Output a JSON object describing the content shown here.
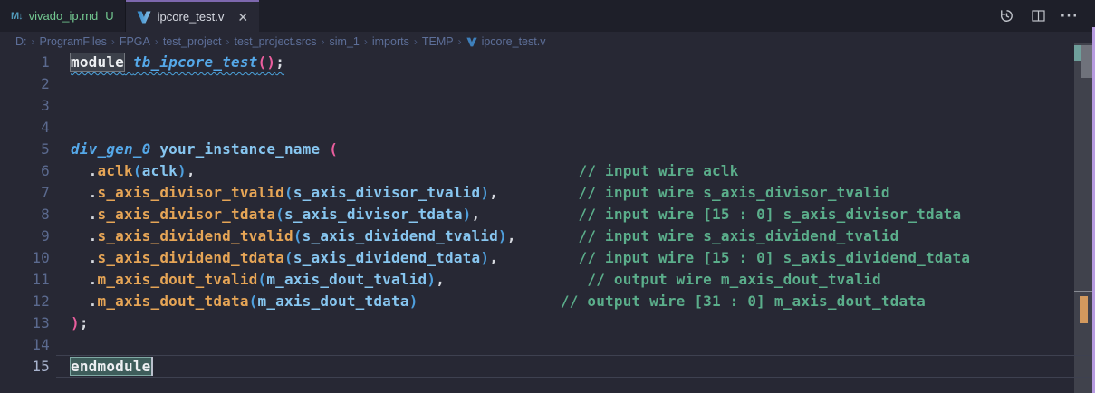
{
  "tab_bar": {
    "tabs": [
      {
        "label": "vivado_ip.md",
        "badge": "U",
        "icon": "markdown-icon",
        "state": "inactive"
      },
      {
        "label": "ipcore_test.v",
        "icon": "vivado-verilog-icon",
        "state": "active",
        "close_glyph": "✕"
      }
    ],
    "actions": [
      "history-icon",
      "split-editor-icon",
      "more-actions-icon"
    ],
    "more_glyph": "···"
  },
  "breadcrumb": {
    "separator": "›",
    "items": [
      "D:",
      "ProgramFiles",
      "FPGA",
      "test_project",
      "test_project.srcs",
      "sim_1",
      "imports",
      "TEMP",
      "ipcore_test.v"
    ],
    "file_icon": "vivado-verilog-icon"
  },
  "editor": {
    "lines": [
      {
        "num": "1",
        "squiggle": true,
        "segments": [
          {
            "t": "module",
            "c": "kw",
            "box": "word"
          },
          {
            "t": " ",
            "c": "pu"
          },
          {
            "t": "tb_ipcore_test",
            "c": "ent"
          },
          {
            "t": "()",
            "c": "pp"
          },
          {
            "t": ";",
            "c": "pu"
          }
        ]
      },
      {
        "num": "2",
        "segments": []
      },
      {
        "num": "3",
        "segments": []
      },
      {
        "num": "4",
        "segments": []
      },
      {
        "num": "5",
        "segments": [
          {
            "t": "div_gen_0",
            "c": "ent"
          },
          {
            "t": " ",
            "c": "pu"
          },
          {
            "t": "your_instance_name",
            "c": "var"
          },
          {
            "t": " ",
            "c": "pu"
          },
          {
            "t": "(",
            "c": "pp"
          }
        ]
      },
      {
        "num": "6",
        "segments": [
          {
            "t": "  .",
            "c": "pu"
          },
          {
            "t": "aclk",
            "c": "port"
          },
          {
            "t": "(",
            "c": "bp"
          },
          {
            "t": "aclk",
            "c": "var"
          },
          {
            "t": ")",
            "c": "bp"
          },
          {
            "t": ",",
            "c": "pu"
          },
          {
            "pad": 43
          },
          {
            "t": "// input wire aclk",
            "c": "cm"
          }
        ]
      },
      {
        "num": "7",
        "segments": [
          {
            "t": "  .",
            "c": "pu"
          },
          {
            "t": "s_axis_divisor_tvalid",
            "c": "port"
          },
          {
            "t": "(",
            "c": "bp"
          },
          {
            "t": "s_axis_divisor_tvalid",
            "c": "var"
          },
          {
            "t": ")",
            "c": "bp"
          },
          {
            "t": ",",
            "c": "pu"
          },
          {
            "pad": 9
          },
          {
            "t": "// input wire s_axis_divisor_tvalid",
            "c": "cm"
          }
        ]
      },
      {
        "num": "8",
        "segments": [
          {
            "t": "  .",
            "c": "pu"
          },
          {
            "t": "s_axis_divisor_tdata",
            "c": "port"
          },
          {
            "t": "(",
            "c": "bp"
          },
          {
            "t": "s_axis_divisor_tdata",
            "c": "var"
          },
          {
            "t": ")",
            "c": "bp"
          },
          {
            "t": ",",
            "c": "pu"
          },
          {
            "pad": 11
          },
          {
            "t": "// input wire [15 : 0] s_axis_divisor_tdata",
            "c": "cm"
          }
        ]
      },
      {
        "num": "9",
        "segments": [
          {
            "t": "  .",
            "c": "pu"
          },
          {
            "t": "s_axis_dividend_tvalid",
            "c": "port"
          },
          {
            "t": "(",
            "c": "bp"
          },
          {
            "t": "s_axis_dividend_tvalid",
            "c": "var"
          },
          {
            "t": ")",
            "c": "bp"
          },
          {
            "t": ",",
            "c": "pu"
          },
          {
            "pad": 7
          },
          {
            "t": "// input wire s_axis_dividend_tvalid",
            "c": "cm"
          }
        ]
      },
      {
        "num": "10",
        "segments": [
          {
            "t": "  .",
            "c": "pu"
          },
          {
            "t": "s_axis_dividend_tdata",
            "c": "port"
          },
          {
            "t": "(",
            "c": "bp"
          },
          {
            "t": "s_axis_dividend_tdata",
            "c": "var"
          },
          {
            "t": ")",
            "c": "bp"
          },
          {
            "t": ",",
            "c": "pu"
          },
          {
            "pad": 9
          },
          {
            "t": "// input wire [15 : 0] s_axis_dividend_tdata",
            "c": "cm"
          }
        ]
      },
      {
        "num": "11",
        "segments": [
          {
            "t": "  .",
            "c": "pu"
          },
          {
            "t": "m_axis_dout_tvalid",
            "c": "port"
          },
          {
            "t": "(",
            "c": "bp"
          },
          {
            "t": "m_axis_dout_tvalid",
            "c": "var"
          },
          {
            "t": ")",
            "c": "bp"
          },
          {
            "t": ",",
            "c": "pu"
          },
          {
            "pad": 16
          },
          {
            "t": "// output wire m_axis_dout_tvalid",
            "c": "cm"
          }
        ]
      },
      {
        "num": "12",
        "segments": [
          {
            "t": "  .",
            "c": "pu"
          },
          {
            "t": "m_axis_dout_tdata",
            "c": "port"
          },
          {
            "t": "(",
            "c": "bp"
          },
          {
            "t": "m_axis_dout_tdata",
            "c": "var"
          },
          {
            "t": ")",
            "c": "bp"
          },
          {
            "pad": 16
          },
          {
            "t": "// output wire [31 : 0] m_axis_dout_tdata",
            "c": "cm"
          }
        ]
      },
      {
        "num": "13",
        "segments": [
          {
            "t": ")",
            "c": "pp"
          },
          {
            "t": ";",
            "c": "pu"
          }
        ]
      },
      {
        "num": "14",
        "segments": []
      },
      {
        "num": "15",
        "current": true,
        "segments": [
          {
            "t": "endmodule",
            "c": "kw",
            "box": "sel"
          }
        ]
      }
    ],
    "overview_ruler": [
      "selection-marker",
      "scrollbar-thumb",
      "cursor-line-marker",
      "warning-marker"
    ]
  },
  "theme": {
    "editor_bg": "#272834",
    "tabbar_bg": "#1E1F29",
    "active_tab_border": "#7D68AE",
    "untracked_green": "#73C991",
    "keyword_fg": "#EDEFF2",
    "entity_blue": "#55A8E8",
    "identifier_blue": "#87C6F0",
    "port_orange": "#E6A556",
    "paren_pink": "#EA5E9E",
    "paren_blue": "#4E9FDD",
    "comment_green": "#5BAE8B",
    "line_number": "#5B6A8F",
    "breadcrumb_fg": "#5D6F99",
    "squiggle_blue": "#4BA3DC",
    "word_highlight_bg": "#3C404A",
    "selection_highlight_bg": "#3E5D5B",
    "ruler_warning_orange": "#D2995E",
    "window_border_purple": "#B79BE0"
  }
}
